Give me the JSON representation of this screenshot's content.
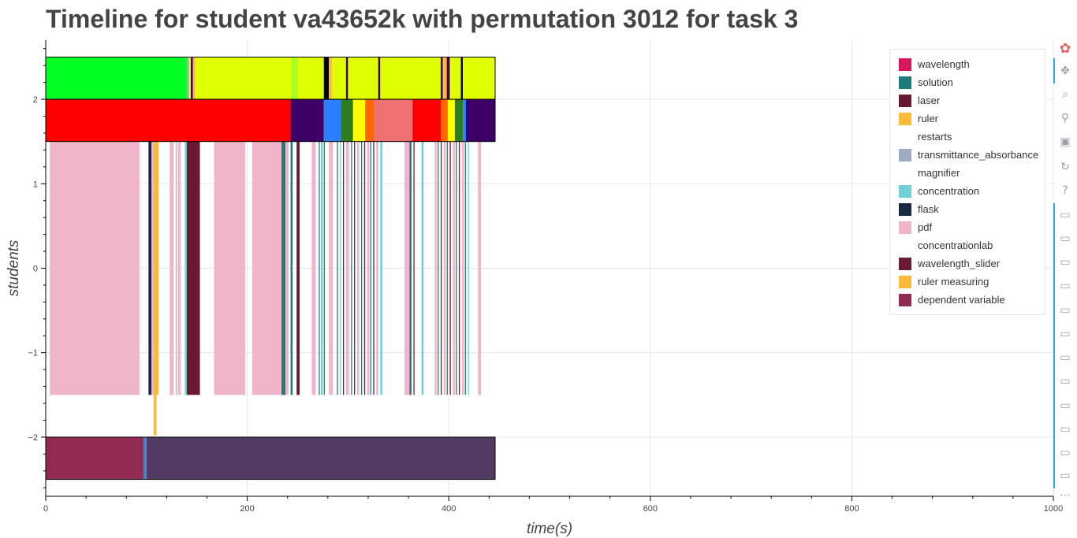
{
  "title": "Timeline for student va43652k with permutation 3012 for task 3",
  "legend": [
    {
      "label": "wavelength",
      "color": "#d6175b"
    },
    {
      "label": "solution",
      "color": "#1e7b7a"
    },
    {
      "label": "laser",
      "color": "#6a1a30"
    },
    {
      "label": "ruler",
      "color": "#fdb93c"
    },
    {
      "label": "restarts",
      "color": "#ffffff"
    },
    {
      "label": "transmittance_absorbance",
      "color": "#9daabf"
    },
    {
      "label": "magnifier",
      "color": "#ffffff"
    },
    {
      "label": "concentration",
      "color": "#6fd0d8"
    },
    {
      "label": "flask",
      "color": "#172a45"
    },
    {
      "label": "pdf",
      "color": "#eeb6c8"
    },
    {
      "label": "concentrationlab",
      "color": "#ffffff"
    },
    {
      "label": "wavelength_slider",
      "color": "#6a1a30"
    },
    {
      "label": "ruler measuring",
      "color": "#fdb93c"
    },
    {
      "label": "dependent variable",
      "color": "#922a52"
    }
  ],
  "toolbar": [
    {
      "name": "bokeh-logo-icon",
      "glyph": "✿"
    },
    {
      "name": "pan-tool-icon",
      "glyph": "✥"
    },
    {
      "name": "box-zoom-tool-icon",
      "glyph": "⌕"
    },
    {
      "name": "wheel-zoom-tool-icon",
      "glyph": "⚲"
    },
    {
      "name": "save-tool-icon",
      "glyph": "▣"
    },
    {
      "name": "reset-tool-icon",
      "glyph": "↻"
    },
    {
      "name": "help-tool-icon",
      "glyph": "?"
    },
    {
      "name": "hover-tool-icon-1",
      "glyph": "▭"
    },
    {
      "name": "hover-tool-icon-2",
      "glyph": "▭"
    },
    {
      "name": "hover-tool-icon-3",
      "glyph": "▭"
    },
    {
      "name": "hover-tool-icon-4",
      "glyph": "▭"
    },
    {
      "name": "hover-tool-icon-5",
      "glyph": "▭"
    },
    {
      "name": "hover-tool-icon-6",
      "glyph": "▭"
    },
    {
      "name": "hover-tool-icon-7",
      "glyph": "▭"
    },
    {
      "name": "hover-tool-icon-8",
      "glyph": "▭"
    },
    {
      "name": "hover-tool-icon-9",
      "glyph": "▭"
    },
    {
      "name": "hover-tool-icon-10",
      "glyph": "▭"
    },
    {
      "name": "hover-tool-icon-11",
      "glyph": "▭"
    },
    {
      "name": "hover-tool-icon-12",
      "glyph": "▭"
    },
    {
      "name": "more-tools-icon",
      "glyph": "⋯"
    }
  ],
  "chart_data": {
    "type": "timeline",
    "xlabel": "time(s)",
    "ylabel": "students",
    "xlim": [
      0,
      1000
    ],
    "ylim": [
      -2.7,
      2.7
    ],
    "x_ticks": [
      0,
      200,
      400,
      600,
      800,
      1000
    ],
    "y_ticks": [
      2,
      1,
      0,
      -1,
      -2
    ],
    "x_tick_labels": [
      "0",
      "200",
      "400",
      "600",
      "800",
      "1000"
    ],
    "y_tick_labels": [
      "2",
      "1",
      "0",
      "−1",
      "−2"
    ],
    "grid": true,
    "legend_position": "top-right",
    "rows": [
      {
        "y0": 2.0,
        "y1": 2.5,
        "segments": [
          {
            "x0": 0,
            "x1": 140,
            "color": "#00ff22"
          },
          {
            "x0": 140,
            "x1": 142,
            "color": "#9daabf"
          },
          {
            "x0": 142,
            "x1": 144,
            "color": "#e0ff00"
          },
          {
            "x0": 144,
            "x1": 146,
            "color": "#3d0066"
          },
          {
            "x0": 146,
            "x1": 148,
            "color": "#fdb93c"
          },
          {
            "x0": 148,
            "x1": 244,
            "color": "#e0ff00"
          },
          {
            "x0": 244,
            "x1": 250,
            "color": "#a8ff20"
          },
          {
            "x0": 250,
            "x1": 276,
            "color": "#e0ff00"
          },
          {
            "x0": 276,
            "x1": 281,
            "color": "#000000"
          },
          {
            "x0": 281,
            "x1": 284,
            "color": "#fdb93c"
          },
          {
            "x0": 284,
            "x1": 298,
            "color": "#e0ff00"
          },
          {
            "x0": 298,
            "x1": 300,
            "color": "#3d0066"
          },
          {
            "x0": 300,
            "x1": 330,
            "color": "#e0ff00"
          },
          {
            "x0": 330,
            "x1": 332,
            "color": "#3d0066"
          },
          {
            "x0": 332,
            "x1": 392,
            "color": "#e0ff00"
          },
          {
            "x0": 392,
            "x1": 394,
            "color": "#3d0066"
          },
          {
            "x0": 394,
            "x1": 398,
            "color": "#fdb93c"
          },
          {
            "x0": 398,
            "x1": 401,
            "color": "#3d0066"
          },
          {
            "x0": 401,
            "x1": 412,
            "color": "#e0ff00"
          },
          {
            "x0": 412,
            "x1": 414,
            "color": "#000000"
          },
          {
            "x0": 414,
            "x1": 446,
            "color": "#e0ff00"
          }
        ]
      },
      {
        "y0": 1.5,
        "y1": 2.0,
        "segments": [
          {
            "x0": 0,
            "x1": 243,
            "color": "#ff0000"
          },
          {
            "x0": 243,
            "x1": 276,
            "color": "#3d0066"
          },
          {
            "x0": 276,
            "x1": 293,
            "color": "#2a7fff"
          },
          {
            "x0": 293,
            "x1": 305,
            "color": "#2e7d22"
          },
          {
            "x0": 305,
            "x1": 317,
            "color": "#ffff00"
          },
          {
            "x0": 317,
            "x1": 326,
            "color": "#ff6600"
          },
          {
            "x0": 326,
            "x1": 364,
            "color": "#ee7070"
          },
          {
            "x0": 364,
            "x1": 392,
            "color": "#ff0000"
          },
          {
            "x0": 392,
            "x1": 399,
            "color": "#ff6600"
          },
          {
            "x0": 399,
            "x1": 406,
            "color": "#ffff00"
          },
          {
            "x0": 406,
            "x1": 414,
            "color": "#2e7d22"
          },
          {
            "x0": 414,
            "x1": 417,
            "color": "#2a7fff"
          },
          {
            "x0": 417,
            "x1": 446,
            "color": "#3d0066"
          }
        ]
      },
      {
        "y0": -1.5,
        "y1": 1.5,
        "segments": [
          {
            "x0": 4,
            "x1": 93,
            "color": "#eeb6c8"
          },
          {
            "x0": 102,
            "x1": 105,
            "color": "#172a45"
          },
          {
            "x0": 105,
            "x1": 107,
            "color": "#eeb6c8"
          },
          {
            "x0": 107,
            "x1": 112,
            "color": "#fdb93c"
          },
          {
            "x0": 123,
            "x1": 127,
            "color": "#eeb6c8"
          },
          {
            "x0": 129,
            "x1": 130,
            "color": "#6fd0d8"
          },
          {
            "x0": 131,
            "x1": 134,
            "color": "#eeb6c8"
          },
          {
            "x0": 138,
            "x1": 140,
            "color": "#6fd0d8"
          },
          {
            "x0": 140,
            "x1": 153,
            "color": "#6a1a30"
          },
          {
            "x0": 167,
            "x1": 198,
            "color": "#eeb6c8"
          },
          {
            "x0": 205,
            "x1": 234,
            "color": "#eeb6c8"
          },
          {
            "x0": 234,
            "x1": 238,
            "color": "#1e7b7a"
          },
          {
            "x0": 238,
            "x1": 241,
            "color": "#eeb6c8"
          },
          {
            "x0": 243,
            "x1": 245,
            "color": "#1e7b7a"
          },
          {
            "x0": 249,
            "x1": 252,
            "color": "#6a1a30"
          },
          {
            "x0": 264,
            "x1": 268,
            "color": "#eeb6c8"
          },
          {
            "x0": 271,
            "x1": 272,
            "color": "#1e7b7a"
          },
          {
            "x0": 273,
            "x1": 275,
            "color": "#6fd0d8"
          },
          {
            "x0": 276,
            "x1": 277,
            "color": "#1e7b7a"
          },
          {
            "x0": 281,
            "x1": 285,
            "color": "#eeb6c8"
          },
          {
            "x0": 289,
            "x1": 290,
            "color": "#1e7b7a"
          },
          {
            "x0": 292,
            "x1": 293,
            "color": "#6fd0d8"
          },
          {
            "x0": 295,
            "x1": 296,
            "color": "#6a1a30"
          },
          {
            "x0": 298,
            "x1": 301,
            "color": "#eeb6c8"
          },
          {
            "x0": 303,
            "x1": 304,
            "color": "#1e7b7a"
          },
          {
            "x0": 306,
            "x1": 307,
            "color": "#6a1a30"
          },
          {
            "x0": 309,
            "x1": 311,
            "color": "#eeb6c8"
          },
          {
            "x0": 313,
            "x1": 314,
            "color": "#1e7b7a"
          },
          {
            "x0": 316,
            "x1": 317,
            "color": "#6a1a30"
          },
          {
            "x0": 319,
            "x1": 321,
            "color": "#eeb6c8"
          },
          {
            "x0": 322,
            "x1": 323,
            "color": "#1e7b7a"
          },
          {
            "x0": 325,
            "x1": 326,
            "color": "#6a1a30"
          },
          {
            "x0": 328,
            "x1": 330,
            "color": "#eeb6c8"
          },
          {
            "x0": 332,
            "x1": 334,
            "color": "#6fd0d8"
          },
          {
            "x0": 356,
            "x1": 361,
            "color": "#eeb6c8"
          },
          {
            "x0": 361,
            "x1": 363,
            "color": "#1e7b7a"
          },
          {
            "x0": 365,
            "x1": 366,
            "color": "#6a1a30"
          },
          {
            "x0": 373,
            "x1": 375,
            "color": "#6fd0d8"
          },
          {
            "x0": 386,
            "x1": 388,
            "color": "#eeb6c8"
          },
          {
            "x0": 389,
            "x1": 390,
            "color": "#1e7b7a"
          },
          {
            "x0": 392,
            "x1": 393,
            "color": "#6a1a30"
          },
          {
            "x0": 395,
            "x1": 397,
            "color": "#eeb6c8"
          },
          {
            "x0": 398,
            "x1": 399,
            "color": "#1e7b7a"
          },
          {
            "x0": 401,
            "x1": 402,
            "color": "#6a1a30"
          },
          {
            "x0": 404,
            "x1": 406,
            "color": "#eeb6c8"
          },
          {
            "x0": 407,
            "x1": 408,
            "color": "#1e7b7a"
          },
          {
            "x0": 410,
            "x1": 411,
            "color": "#6a1a30"
          },
          {
            "x0": 413,
            "x1": 415,
            "color": "#eeb6c8"
          },
          {
            "x0": 416,
            "x1": 417,
            "color": "#1e7b7a"
          },
          {
            "x0": 419,
            "x1": 420,
            "color": "#6fd0d8"
          },
          {
            "x0": 429,
            "x1": 432,
            "color": "#eeb6c8"
          }
        ]
      },
      {
        "y0": -1.98,
        "y1": -1.5,
        "segments": [
          {
            "x0": 107,
            "x1": 110,
            "color": "#fdb93c"
          }
        ]
      },
      {
        "y0": -2.5,
        "y1": -2.0,
        "segments": [
          {
            "x0": 0,
            "x1": 97,
            "color": "#922a52"
          },
          {
            "x0": 97,
            "x1": 100,
            "color": "#4a80c8"
          },
          {
            "x0": 100,
            "x1": 446,
            "color": "#523a62"
          }
        ]
      }
    ],
    "outlined_rows": [
      {
        "x0": 0,
        "x1": 446,
        "y0": 2.0,
        "y1": 2.5
      },
      {
        "x0": 0,
        "x1": 446,
        "y0": 1.5,
        "y1": 2.0
      },
      {
        "x0": 0,
        "x1": 446,
        "y0": -2.5,
        "y1": -2.0
      }
    ]
  }
}
